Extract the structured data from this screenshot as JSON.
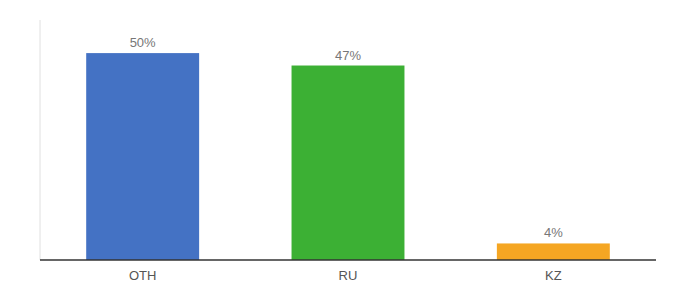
{
  "chart_data": {
    "type": "bar",
    "categories": [
      "OTH",
      "RU",
      "KZ"
    ],
    "values": [
      50,
      47,
      4
    ],
    "value_labels": [
      "50%",
      "47%",
      "4%"
    ],
    "colors": [
      "#4472c4",
      "#3cb034",
      "#f5a623"
    ],
    "ylim": [
      0,
      58
    ],
    "data_labels": true,
    "tick_labels": "x"
  }
}
